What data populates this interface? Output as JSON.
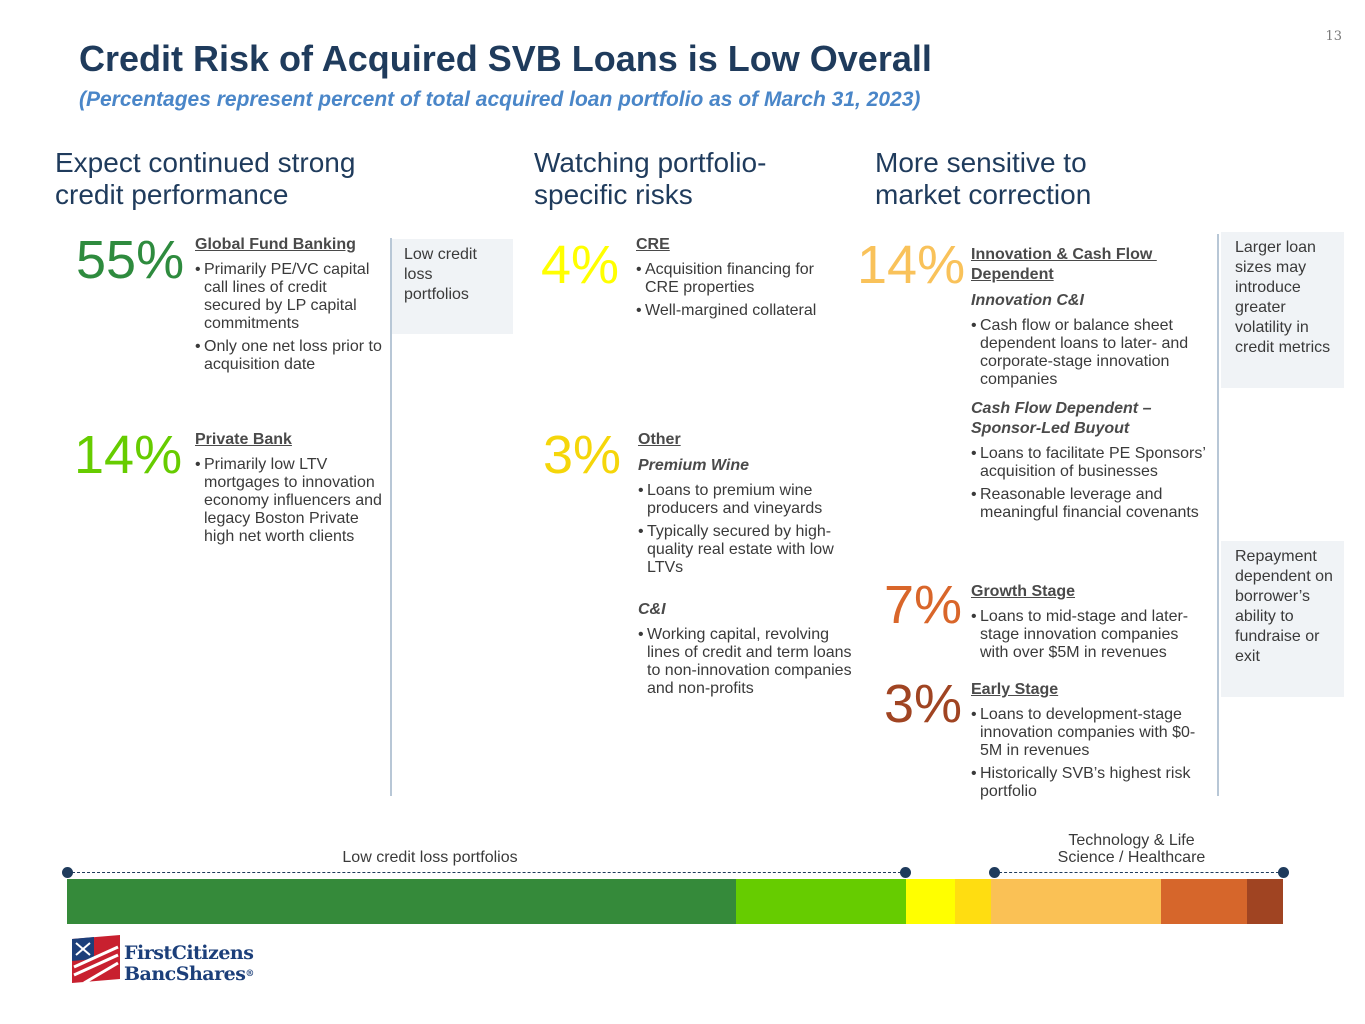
{
  "page_number": "13",
  "title": "Credit Risk of Acquired SVB Loans is Low Overall",
  "subtitle": "(Percentages represent percent of total acquired loan portfolio as of March 31, 2023)",
  "columns": {
    "left": {
      "heading_line1": "Expect continued strong",
      "heading_line2": "credit performance"
    },
    "middle": {
      "heading_line1": "Watching portfolio-",
      "heading_line2": "specific risks"
    },
    "right": {
      "heading_line1": "More sensitive to",
      "heading_line2": "market correction"
    }
  },
  "sections": {
    "gfb": {
      "pct": "55%",
      "color": "#2e8b3e",
      "title": "Global Fund Banking",
      "bullets": [
        "Primarily PE/VC capital call lines of credit secured by LP capital commitments",
        "Only one net loss prior to acquisition date"
      ]
    },
    "private_bank": {
      "pct": "14%",
      "color": "#66cc00",
      "title": "Private Bank",
      "bullets": [
        "Primarily low LTV mortgages to innovation economy influencers and legacy Boston Private high net worth clients"
      ]
    },
    "cre": {
      "pct": "4%",
      "color": "#ffff00",
      "title": "CRE",
      "bullets": [
        "Acquisition financing for CRE properties",
        "Well-margined collateral"
      ]
    },
    "other": {
      "pct": "3%",
      "color": "#f5d60a",
      "title": "Other",
      "sub1": "Premium Wine",
      "bullets1": [
        "Loans to premium wine producers and vineyards",
        "Typically secured by high-quality real estate with low LTVs"
      ],
      "sub2": "C&I",
      "bullets2": [
        "Working capital, revolving lines of credit and term loans to non-innovation companies and non-profits"
      ]
    },
    "innovation": {
      "pct": "14%",
      "color": "#f9c25a",
      "title_line1": "Innovation & Cash Flow ",
      "title_line2": "Dependent",
      "sub1": "Innovation C&I",
      "bullets1": [
        "Cash flow or balance sheet dependent loans to later- and corporate-stage innovation companies"
      ],
      "sub2_line1": "Cash Flow Dependent –",
      "sub2_line2": "Sponsor-Led Buyout",
      "bullets2": [
        "Loans to facilitate PE Sponsors’ acquisition of businesses",
        "Reasonable leverage and meaningful financial covenants"
      ]
    },
    "growth": {
      "pct": "7%",
      "color": "#d9662a",
      "title": "Growth Stage",
      "bullets": [
        "Loans to mid-stage and later-stage innovation companies with over $5M in revenues"
      ]
    },
    "early": {
      "pct": "3%",
      "color": "#a04422",
      "title": "Early Stage",
      "bullets": [
        "Loans to development-stage innovation companies with $0-5M in revenues",
        "Historically SVB’s highest risk portfolio"
      ]
    }
  },
  "sideboxes": {
    "low_credit": "Low credit loss portfolios",
    "larger_loan": "Larger loan sizes may introduce greater volatility in credit metrics",
    "repayment": "Repayment dependent on borrower’s ability to fundraise or exit"
  },
  "bar": {
    "low_label": "Low credit loss portfolios",
    "tech_label_line1": "Technology & Life",
    "tech_label_line2": "Science / Healthcare",
    "segments": [
      {
        "name": "Global Fund Banking",
        "share": 55,
        "color": "#358a3a"
      },
      {
        "name": "Private Bank",
        "share": 14,
        "color": "#66cc00"
      },
      {
        "name": "CRE",
        "share": 4,
        "color": "#ffff00"
      },
      {
        "name": "Other",
        "share": 3,
        "color": "#ffdd11"
      },
      {
        "name": "Innovation & Cash Flow Dependent",
        "share": 14,
        "color": "#fac155"
      },
      {
        "name": "Growth Stage",
        "share": 7,
        "color": "#d6662b"
      },
      {
        "name": "Early Stage",
        "share": 3,
        "color": "#a04422"
      }
    ]
  },
  "logo": {
    "line1": "FirstCitizens",
    "line2": "BancShares",
    "mark": "®"
  }
}
